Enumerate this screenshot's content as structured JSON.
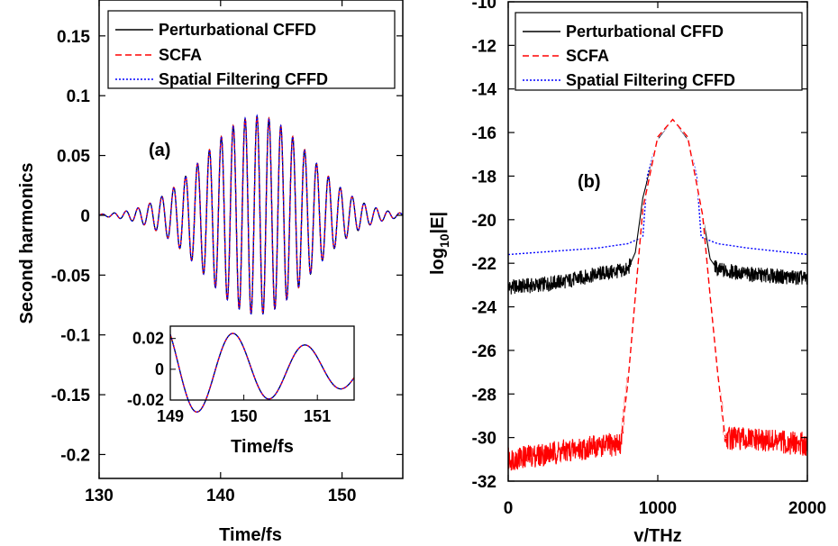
{
  "chart_data": [
    {
      "type": "line",
      "panel": "a",
      "annotation": "(a)",
      "title": "",
      "xlabel": "Time/fs",
      "ylabel": "Second harmonics",
      "xlim": [
        130,
        155
      ],
      "ylim": [
        -0.22,
        0.18
      ],
      "x_ticks": [
        130,
        140,
        150
      ],
      "x_tick_labels": [
        "130",
        "140",
        "150"
      ],
      "y_ticks": [
        -0.2,
        -0.15,
        -0.1,
        -0.05,
        0,
        0.05,
        0.1,
        0.15
      ],
      "y_tick_labels": [
        "-0.2",
        "-0.15",
        "-0.1",
        "-0.05",
        "0",
        "0.05",
        "0.1",
        "0.15"
      ],
      "grid": false,
      "legend_position": "top",
      "series": [
        {
          "name": "Perturbational CFFD",
          "color": "#000000",
          "style": "solid"
        },
        {
          "name": "SCFA",
          "color": "#ff0000",
          "style": "dashed"
        },
        {
          "name": "Spatial Filtering CFFD",
          "color": "#0000ff",
          "style": "dotted"
        }
      ],
      "signal": {
        "form": "gaussian-modulated oscillation",
        "center_time": 143,
        "peak_amplitude": 0.083,
        "gaussian_width": 4.3,
        "period": 0.98
      },
      "inset": {
        "xlabel": "Time/fs",
        "xlim": [
          149,
          151.5
        ],
        "ylim": [
          -0.02,
          0.028
        ],
        "x_ticks": [
          149,
          150,
          151
        ],
        "x_tick_labels": [
          "149",
          "150",
          "151"
        ],
        "y_ticks": [
          -0.02,
          0,
          0.02
        ],
        "y_tick_labels": [
          "-0.02",
          "0",
          "0.02"
        ]
      }
    },
    {
      "type": "line",
      "panel": "b",
      "annotation": "(b)",
      "title": "",
      "xlabel": "v/THz",
      "ylabel_main": "log",
      "ylabel_sub": "10",
      "ylabel_tail": "|E|",
      "xlim": [
        0,
        2000
      ],
      "ylim": [
        -32,
        -10
      ],
      "x_ticks": [
        0,
        1000,
        2000
      ],
      "x_tick_labels": [
        "0",
        "1000",
        "2000"
      ],
      "y_ticks": [
        -32,
        -30,
        -28,
        -26,
        -24,
        -22,
        -20,
        -18,
        -16,
        -14,
        -12,
        -10
      ],
      "y_tick_labels": [
        "-32",
        "-30",
        "-28",
        "-26",
        "-24",
        "-22",
        "-20",
        "-18",
        "-16",
        "-14",
        "-12",
        "-10"
      ],
      "grid": false,
      "legend_position": "top",
      "series": [
        {
          "name": "Perturbational CFFD",
          "color": "#000000",
          "style": "solid",
          "x": [
            0,
            200,
            400,
            600,
            800,
            850,
            900,
            1000,
            1100,
            1200,
            1300,
            1350,
            1400,
            1600,
            1800,
            2000
          ],
          "y": [
            -23.1,
            -23.0,
            -22.8,
            -22.5,
            -22.3,
            -21.5,
            -19.0,
            -16.3,
            -15.4,
            -16.3,
            -19.8,
            -21.8,
            -22.3,
            -22.5,
            -22.6,
            -22.7
          ]
        },
        {
          "name": "SCFA",
          "color": "#ff0000",
          "style": "dashed",
          "x": [
            0,
            200,
            400,
            600,
            750,
            800,
            850,
            900,
            1000,
            1100,
            1200,
            1300,
            1350,
            1400,
            1450,
            1600,
            1800,
            2000
          ],
          "y": [
            -31.0,
            -30.8,
            -30.6,
            -30.4,
            -30.3,
            -27.5,
            -23.5,
            -19.5,
            -16.2,
            -15.4,
            -16.2,
            -19.8,
            -23.5,
            -27.0,
            -30.0,
            -30.1,
            -30.2,
            -30.3
          ]
        },
        {
          "name": "Spatial Filtering CFFD",
          "color": "#0000ff",
          "style": "dotted",
          "x": [
            0,
            200,
            400,
            600,
            800,
            900,
            930,
            1000,
            1100,
            1200,
            1260,
            1290,
            1400,
            1600,
            1800,
            2000
          ],
          "y": [
            -21.6,
            -21.5,
            -21.4,
            -21.3,
            -21.1,
            -20.8,
            -18.0,
            -16.3,
            -15.4,
            -16.3,
            -18.0,
            -20.8,
            -21.1,
            -21.3,
            -21.45,
            -21.6
          ]
        }
      ]
    }
  ]
}
